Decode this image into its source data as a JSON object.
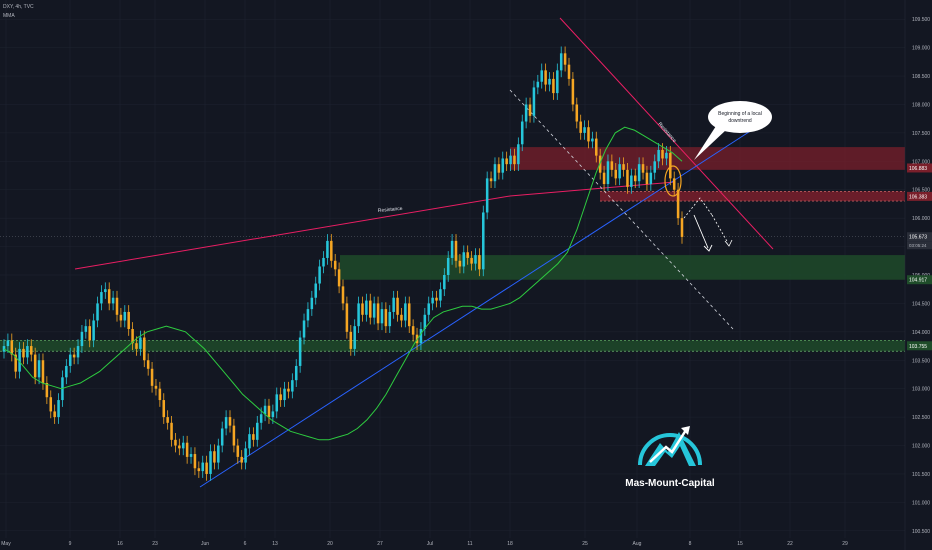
{
  "header": {
    "symbol_line": "DXY, 4h, TVC",
    "indicator_label": "MMA"
  },
  "colors": {
    "background": "#131722",
    "grid": "#1f2430",
    "bull": "#26c6da",
    "bear": "#f5a623",
    "ma": "#2ecc40",
    "support_line": "#2962ff",
    "resistance_line": "#e91e63",
    "resistance_zone": "#7a1f2b",
    "support_zone": "#1f4d2a",
    "price_label": "#2a2e39"
  },
  "annotations": {
    "resistance_label_1": "Resistance",
    "resistance_label_2": "Resistance",
    "callout_text_line1": "Beginning of a local",
    "callout_text_line2": "downtrend"
  },
  "brand": {
    "name": "Mas-Mount-Capital"
  },
  "chart_data": {
    "type": "candlestick",
    "symbol": "DXY",
    "timeframe": "4h",
    "x_tick_labels": [
      "May",
      "9",
      "16",
      "23",
      "Jun",
      "6",
      "13",
      "20",
      "27",
      "Jul",
      "11",
      "18",
      "25",
      "Aug",
      "8",
      "15",
      "22",
      "29"
    ],
    "y_tick_labels": [
      "109.500",
      "109.000",
      "108.500",
      "108.000",
      "107.500",
      "107.000",
      "106.500",
      "106.000",
      "105.500",
      "105.000",
      "104.500",
      "104.000",
      "103.500",
      "103.000",
      "102.500",
      "102.000",
      "101.500",
      "101.000",
      "100.500"
    ],
    "y_range": [
      100.25,
      109.75
    ],
    "price_labels": [
      "106.883",
      "106.383",
      "105.673",
      "104.917",
      "103.755"
    ],
    "last_price": 105.673,
    "countdown": "03:05:24",
    "key_levels": {
      "resistance_zone": [
        106.85,
        107.25
      ],
      "resistance_line_level": 106.383,
      "support_zone": [
        104.917,
        105.35
      ],
      "support_level": 103.755
    },
    "close_series": [
      103.75,
      103.85,
      103.6,
      103.3,
      103.7,
      103.55,
      103.75,
      103.6,
      103.2,
      103.5,
      103.1,
      102.85,
      102.6,
      102.5,
      102.8,
      103.2,
      103.4,
      103.6,
      103.55,
      103.75,
      104.0,
      104.1,
      103.85,
      104.2,
      104.5,
      104.7,
      104.75,
      104.5,
      104.6,
      104.3,
      104.2,
      104.35,
      104.05,
      103.8,
      103.7,
      103.9,
      103.5,
      103.35,
      103.05,
      103.0,
      102.8,
      102.5,
      102.4,
      102.1,
      102.0,
      101.95,
      102.05,
      101.8,
      101.85,
      101.6,
      101.55,
      101.7,
      101.5,
      101.9,
      101.7,
      102.0,
      102.3,
      102.5,
      102.35,
      102.0,
      101.8,
      101.7,
      101.95,
      102.2,
      102.1,
      102.4,
      102.55,
      102.7,
      102.5,
      102.6,
      102.9,
      102.8,
      103.0,
      102.95,
      103.15,
      103.4,
      103.9,
      104.2,
      104.4,
      104.6,
      104.85,
      105.15,
      105.3,
      105.6,
      105.25,
      105.1,
      104.8,
      104.5,
      104.0,
      103.7,
      104.1,
      104.5,
      104.3,
      104.55,
      104.25,
      104.5,
      104.15,
      104.4,
      104.1,
      104.35,
      104.6,
      104.3,
      104.2,
      104.5,
      104.1,
      103.95,
      103.8,
      104.05,
      104.3,
      104.5,
      104.6,
      104.55,
      104.75,
      105.0,
      105.3,
      105.6,
      105.25,
      105.15,
      105.4,
      105.3,
      105.2,
      105.35,
      105.1,
      106.1,
      106.7,
      106.65,
      106.95,
      106.8,
      107.05,
      106.95,
      107.1,
      106.95,
      107.3,
      107.7,
      108.0,
      107.8,
      108.3,
      108.4,
      108.6,
      108.35,
      108.45,
      108.2,
      108.6,
      108.9,
      108.7,
      108.45,
      108.0,
      107.7,
      107.5,
      107.6,
      107.35,
      107.4,
      107.1,
      106.8,
      106.6,
      107.0,
      106.85,
      106.7,
      106.95,
      106.85,
      106.55,
      106.75,
      106.65,
      106.95,
      106.8,
      106.6,
      106.8,
      107.0,
      107.2,
      107.05,
      107.15,
      106.7,
      106.5,
      106.0,
      105.67
    ],
    "ma_series": [
      103.7,
      103.6,
      103.4,
      103.2,
      103.1,
      103.05,
      103.0,
      103.05,
      103.1,
      103.2,
      103.3,
      103.45,
      103.6,
      103.75,
      103.9,
      104.0,
      104.05,
      104.1,
      104.05,
      104.0,
      103.85,
      103.7,
      103.5,
      103.3,
      103.1,
      102.9,
      102.75,
      102.6,
      102.45,
      102.35,
      102.25,
      102.2,
      102.15,
      102.1,
      102.1,
      102.15,
      102.2,
      102.3,
      102.45,
      102.65,
      102.9,
      103.2,
      103.5,
      103.8,
      104.05,
      104.25,
      104.35,
      104.4,
      104.45,
      104.45,
      104.4,
      104.4,
      104.45,
      104.5,
      104.6,
      104.75,
      104.9,
      105.05,
      105.2,
      105.4,
      105.8,
      106.3,
      106.8,
      107.2,
      107.5,
      107.6,
      107.55,
      107.45,
      107.35,
      107.25,
      107.15,
      107.0
    ]
  }
}
